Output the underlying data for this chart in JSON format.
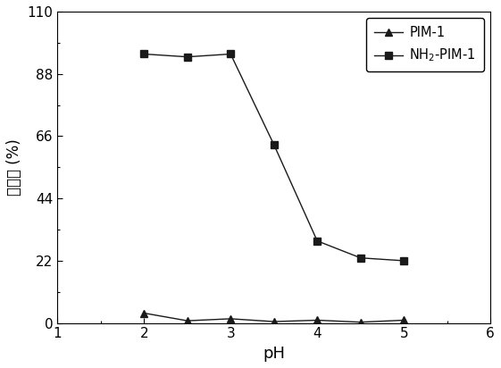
{
  "pim1_x": [
    2,
    2.5,
    3,
    3.5,
    4,
    4.5,
    5
  ],
  "pim1_y": [
    3.5,
    0.8,
    1.5,
    0.5,
    1.0,
    0.3,
    1.0
  ],
  "nh2pim1_x": [
    2,
    2.5,
    3,
    3.5,
    4,
    4.5,
    5
  ],
  "nh2pim1_y": [
    95,
    94,
    95,
    63,
    29,
    23,
    22
  ],
  "xlabel": "pH",
  "ylabel": "吸附率 (%)",
  "xlim": [
    1,
    6
  ],
  "ylim": [
    0,
    110
  ],
  "yticks": [
    0,
    22,
    44,
    66,
    88,
    110
  ],
  "xticks": [
    1,
    2,
    3,
    4,
    5,
    6
  ],
  "legend_pim1": "PIM-1",
  "legend_nh2pim1": "NH$_2$-PIM-1",
  "line_color": "#1a1a1a",
  "bg_color": "#ffffff",
  "figsize": [
    5.61,
    4.12
  ],
  "dpi": 100
}
